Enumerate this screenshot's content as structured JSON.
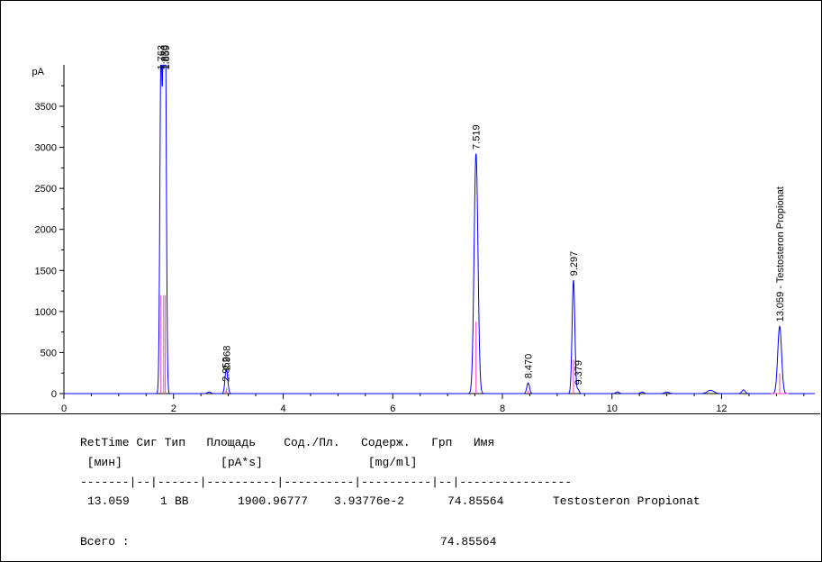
{
  "chart_data": {
    "type": "line",
    "title": "",
    "xlabel": "",
    "ylabel": "pA",
    "xlim": [
      0,
      13.7
    ],
    "ylim": [
      -50,
      4000
    ],
    "x_ticks": [
      0,
      2,
      4,
      6,
      8,
      10,
      12
    ],
    "y_ticks": [
      0,
      500,
      1000,
      1500,
      2000,
      2500,
      3000,
      3500
    ],
    "grid": false,
    "series": [
      {
        "color": "#0000ff",
        "peaks": [
          {
            "rt": 1.77,
            "height": 4000,
            "width": 0.02
          },
          {
            "rt": 1.82,
            "height": 4000,
            "width": 0.02
          },
          {
            "rt": 1.85,
            "height": 4000,
            "width": 0.02
          },
          {
            "rt": 2.65,
            "height": 20,
            "width": 0.03
          },
          {
            "rt": 2.952,
            "height": 90,
            "width": 0.02
          },
          {
            "rt": 2.968,
            "height": 230,
            "width": 0.025
          },
          {
            "rt": 7.519,
            "height": 2920,
            "width": 0.035
          },
          {
            "rt": 8.47,
            "height": 130,
            "width": 0.025
          },
          {
            "rt": 9.297,
            "height": 1380,
            "width": 0.025
          },
          {
            "rt": 9.379,
            "height": 50,
            "width": 0.02
          },
          {
            "rt": 10.1,
            "height": 20,
            "width": 0.03
          },
          {
            "rt": 10.55,
            "height": 20,
            "width": 0.03
          },
          {
            "rt": 11.0,
            "height": 18,
            "width": 0.04
          },
          {
            "rt": 11.8,
            "height": 40,
            "width": 0.06
          },
          {
            "rt": 12.4,
            "height": 45,
            "width": 0.03
          },
          {
            "rt": 13.059,
            "height": 820,
            "width": 0.035
          }
        ]
      }
    ],
    "peak_labels": [
      {
        "rt": 1.763,
        "height": 4000,
        "text": "1.763"
      },
      {
        "rt": 1.83,
        "height": 4000,
        "text": "1.830"
      },
      {
        "rt": 1.859,
        "height": 4000,
        "text": "1.859"
      },
      {
        "rt": 2.952,
        "height": 100,
        "text": "2.952"
      },
      {
        "rt": 2.968,
        "height": 240,
        "text": "2.968"
      },
      {
        "rt": 7.519,
        "height": 2930,
        "text": "7.519"
      },
      {
        "rt": 8.47,
        "height": 140,
        "text": "8.470"
      },
      {
        "rt": 9.297,
        "height": 1390,
        "text": "9.297"
      },
      {
        "rt": 9.379,
        "height": 60,
        "text": "9.379"
      },
      {
        "rt": 13.059,
        "height": 830,
        "text": "13.059 -  Testosteron Propionat"
      }
    ]
  },
  "report": {
    "header1": "RetTime Сиг Тип   Площадь    Сод./Пл.   Содерж.   Грп   Имя",
    "header2": " [мин]              [pA*s]               [mg/ml]",
    "separator": "-------|--|------|----------|----------|----------|--|----------------",
    "rows": [
      {
        "ret_time": "13.059",
        "sig": "1",
        "type": "BB",
        "area": "1900.96777",
        "amt_area": "3.93776e-2",
        "amount": "74.85564",
        "grp": "",
        "name": "Testosteron Propionat"
      }
    ],
    "total_label": "Всего :",
    "total_value": "74.85564"
  }
}
